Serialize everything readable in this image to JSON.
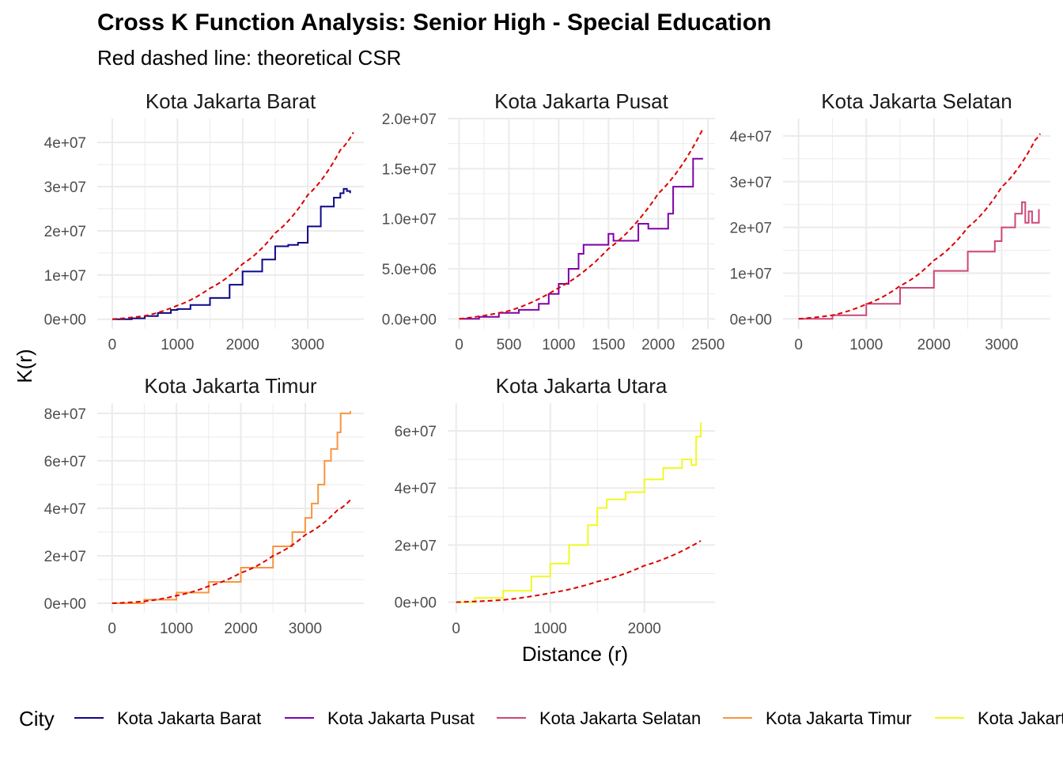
{
  "title": "Cross K Function Analysis: Senior High - Special Education",
  "subtitle": "Red dashed line: theoretical CSR",
  "xlabel": "Distance (r)",
  "ylabel": "K(r)",
  "legend": {
    "title": "City",
    "position": "bottom",
    "entries": [
      "Kota Jakarta Barat",
      "Kota Jakarta Pusat",
      "Kota Jakarta Selatan",
      "Kota Jakarta Timur",
      "Kota Jakarta Utara"
    ]
  },
  "colors": {
    "csr_line": "#dd0000",
    "grid": "#ebebeb",
    "series": [
      "#0d0887",
      "#7e03a8",
      "#cc4778",
      "#f89540",
      "#f0f921"
    ]
  },
  "chart_data": [
    {
      "type": "line",
      "panel": "Kota Jakarta Barat",
      "color": "#0d0887",
      "xlim": [
        -230,
        3860
      ],
      "ylim": [
        -2200000,
        45400000
      ],
      "x_ticks": [
        {
          "v": 0,
          "label": "0"
        },
        {
          "v": 1000,
          "label": "1000"
        },
        {
          "v": 2000,
          "label": "2000"
        },
        {
          "v": 3000,
          "label": "3000"
        }
      ],
      "y_ticks": [
        {
          "v": 0,
          "label": "0e+00"
        },
        {
          "v": 10000000,
          "label": "1e+07"
        },
        {
          "v": 20000000,
          "label": "2e+07"
        },
        {
          "v": 30000000,
          "label": "3e+07"
        },
        {
          "v": 40000000,
          "label": "4e+07"
        }
      ],
      "observed": [
        [
          0,
          0
        ],
        [
          300,
          200000
        ],
        [
          500,
          700000
        ],
        [
          700,
          1400000
        ],
        [
          900,
          2100000
        ],
        [
          1000,
          2300000
        ],
        [
          1200,
          3200000
        ],
        [
          1500,
          4800000
        ],
        [
          1800,
          7800000
        ],
        [
          2000,
          10800000
        ],
        [
          2300,
          13500000
        ],
        [
          2500,
          16500000
        ],
        [
          2700,
          16800000
        ],
        [
          2850,
          17300000
        ],
        [
          3000,
          21000000
        ],
        [
          3200,
          25500000
        ],
        [
          3400,
          27500000
        ],
        [
          3500,
          28500000
        ],
        [
          3550,
          29500000
        ],
        [
          3600,
          29000000
        ],
        [
          3650,
          28500000
        ]
      ],
      "csr": [
        [
          0,
          0
        ],
        [
          500,
          750000
        ],
        [
          1000,
          3100000
        ],
        [
          1500,
          7000000
        ],
        [
          2000,
          12500000
        ],
        [
          2500,
          19500000
        ],
        [
          3000,
          28100000
        ],
        [
          3500,
          38300000
        ],
        [
          3700,
          42300000
        ]
      ]
    },
    {
      "type": "line",
      "panel": "Kota Jakarta Pusat",
      "color": "#7e03a8",
      "xlim": [
        -115,
        2570
      ],
      "ylim": [
        -1000000,
        20000000
      ],
      "x_ticks": [
        {
          "v": 0,
          "label": "0"
        },
        {
          "v": 500,
          "label": "500"
        },
        {
          "v": 1000,
          "label": "1000"
        },
        {
          "v": 1500,
          "label": "1500"
        },
        {
          "v": 2000,
          "label": "2000"
        },
        {
          "v": 2500,
          "label": "2500"
        }
      ],
      "y_ticks": [
        {
          "v": 0,
          "label": "0.0e+00"
        },
        {
          "v": 5000000,
          "label": "5.0e+06"
        },
        {
          "v": 10000000,
          "label": "1.0e+07"
        },
        {
          "v": 15000000,
          "label": "1.5e+07"
        },
        {
          "v": 20000000,
          "label": "2.0e+07"
        }
      ],
      "observed": [
        [
          0,
          0
        ],
        [
          200,
          200000
        ],
        [
          400,
          600000
        ],
        [
          600,
          900000
        ],
        [
          800,
          1500000
        ],
        [
          900,
          2500000
        ],
        [
          1000,
          3500000
        ],
        [
          1100,
          5000000
        ],
        [
          1200,
          6500000
        ],
        [
          1250,
          7400000
        ],
        [
          1400,
          7400000
        ],
        [
          1500,
          8500000
        ],
        [
          1550,
          7800000
        ],
        [
          1700,
          7800000
        ],
        [
          1800,
          9500000
        ],
        [
          1900,
          9000000
        ],
        [
          2000,
          9000000
        ],
        [
          2100,
          10500000
        ],
        [
          2150,
          13200000
        ],
        [
          2300,
          13200000
        ],
        [
          2350,
          16000000
        ],
        [
          2450,
          16000000
        ]
      ],
      "csr": [
        [
          0,
          0
        ],
        [
          500,
          800000
        ],
        [
          1000,
          3100000
        ],
        [
          1500,
          7000000
        ],
        [
          2000,
          12500000
        ],
        [
          2450,
          19000000
        ]
      ]
    },
    {
      "type": "line",
      "panel": "Kota Jakarta Selatan",
      "color": "#cc4778",
      "xlim": [
        -230,
        3720
      ],
      "ylim": [
        -2200000,
        43800000
      ],
      "x_ticks": [
        {
          "v": 0,
          "label": "0"
        },
        {
          "v": 1000,
          "label": "1000"
        },
        {
          "v": 2000,
          "label": "2000"
        },
        {
          "v": 3000,
          "label": "3000"
        }
      ],
      "y_ticks": [
        {
          "v": 0,
          "label": "0e+00"
        },
        {
          "v": 10000000,
          "label": "1e+07"
        },
        {
          "v": 20000000,
          "label": "2e+07"
        },
        {
          "v": 30000000,
          "label": "3e+07"
        },
        {
          "v": 40000000,
          "label": "4e+07"
        }
      ],
      "observed": [
        [
          0,
          0
        ],
        [
          500,
          800000
        ],
        [
          1000,
          3300000
        ],
        [
          1500,
          6800000
        ],
        [
          2000,
          10500000
        ],
        [
          2500,
          14700000
        ],
        [
          2900,
          17000000
        ],
        [
          3000,
          20000000
        ],
        [
          3200,
          23000000
        ],
        [
          3300,
          25500000
        ],
        [
          3350,
          21000000
        ],
        [
          3400,
          23500000
        ],
        [
          3450,
          21000000
        ],
        [
          3500,
          21000000
        ],
        [
          3550,
          24000000
        ]
      ],
      "csr": [
        [
          0,
          0
        ],
        [
          500,
          800000
        ],
        [
          1000,
          3200000
        ],
        [
          1500,
          7200000
        ],
        [
          2000,
          12800000
        ],
        [
          2500,
          20000000
        ],
        [
          3000,
          28800000
        ],
        [
          3500,
          39200000
        ],
        [
          3570,
          40500000
        ]
      ]
    },
    {
      "type": "line",
      "panel": "Kota Jakarta Timur",
      "color": "#f89540",
      "xlim": [
        -230,
        3910
      ],
      "ylim": [
        -4000000,
        84300000
      ],
      "x_ticks": [
        {
          "v": 0,
          "label": "0"
        },
        {
          "v": 1000,
          "label": "1000"
        },
        {
          "v": 2000,
          "label": "2000"
        },
        {
          "v": 3000,
          "label": "3000"
        }
      ],
      "y_ticks": [
        {
          "v": 0,
          "label": "0e+00"
        },
        {
          "v": 20000000,
          "label": "2e+07"
        },
        {
          "v": 40000000,
          "label": "4e+07"
        },
        {
          "v": 60000000,
          "label": "6e+07"
        },
        {
          "v": 80000000,
          "label": "8e+07"
        }
      ],
      "observed": [
        [
          0,
          0
        ],
        [
          500,
          1500000
        ],
        [
          1000,
          4500000
        ],
        [
          1500,
          9000000
        ],
        [
          2000,
          15000000
        ],
        [
          2500,
          24000000
        ],
        [
          2800,
          30000000
        ],
        [
          3000,
          36000000
        ],
        [
          3100,
          42000000
        ],
        [
          3200,
          50000000
        ],
        [
          3300,
          60000000
        ],
        [
          3400,
          65000000
        ],
        [
          3500,
          72000000
        ],
        [
          3550,
          80000000
        ],
        [
          3700,
          81000000
        ]
      ],
      "csr": [
        [
          0,
          0
        ],
        [
          500,
          800000
        ],
        [
          1000,
          3200000
        ],
        [
          1500,
          7200000
        ],
        [
          2000,
          12800000
        ],
        [
          2500,
          20000000
        ],
        [
          3000,
          28800000
        ],
        [
          3500,
          39200000
        ],
        [
          3700,
          43500000
        ]
      ]
    },
    {
      "type": "line",
      "panel": "Kota Jakarta Utara",
      "color": "#f0f921",
      "xlim": [
        -90,
        2750
      ],
      "ylim": [
        -3700000,
        69700000
      ],
      "x_ticks": [
        {
          "v": 0,
          "label": "0"
        },
        {
          "v": 1000,
          "label": "1000"
        },
        {
          "v": 2000,
          "label": "2000"
        }
      ],
      "y_ticks": [
        {
          "v": 0,
          "label": "0e+00"
        },
        {
          "v": 20000000,
          "label": "2e+07"
        },
        {
          "v": 40000000,
          "label": "4e+07"
        },
        {
          "v": 60000000,
          "label": "6e+07"
        }
      ],
      "observed": [
        [
          0,
          0
        ],
        [
          200,
          1500000
        ],
        [
          500,
          4000000
        ],
        [
          800,
          9000000
        ],
        [
          1000,
          13500000
        ],
        [
          1200,
          20000000
        ],
        [
          1400,
          27000000
        ],
        [
          1500,
          33000000
        ],
        [
          1600,
          36000000
        ],
        [
          1800,
          38500000
        ],
        [
          2000,
          43000000
        ],
        [
          2200,
          47000000
        ],
        [
          2400,
          50000000
        ],
        [
          2500,
          48000000
        ],
        [
          2550,
          58000000
        ],
        [
          2600,
          63000000
        ]
      ],
      "csr": [
        [
          0,
          0
        ],
        [
          500,
          800000
        ],
        [
          1000,
          3200000
        ],
        [
          1500,
          7200000
        ],
        [
          2000,
          12800000
        ],
        [
          2600,
          21500000
        ]
      ]
    }
  ]
}
